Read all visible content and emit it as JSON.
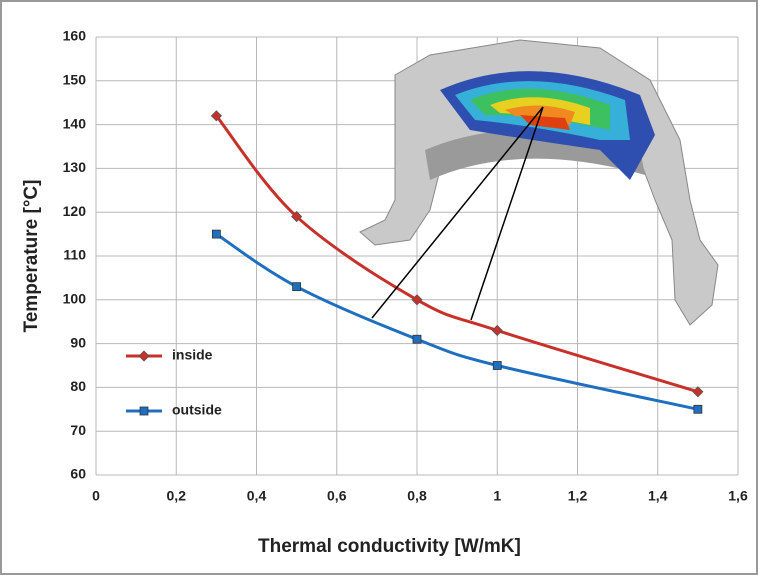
{
  "chart_data": {
    "type": "line",
    "x_label": "Thermal conductivity [W/mK]",
    "y_label": "Temperature  [°C]",
    "x": [
      0.3,
      0.5,
      0.8,
      1.0,
      1.5
    ],
    "series": [
      {
        "name": "inside",
        "color": "#c8302a",
        "marker": "diamond",
        "values": [
          142,
          119,
          100,
          93,
          79
        ]
      },
      {
        "name": "outside",
        "color": "#1f6fc0",
        "marker": "square",
        "values": [
          115,
          103,
          91,
          85,
          75
        ]
      }
    ],
    "xlim": [
      0,
      1.6
    ],
    "xticks": [
      0,
      {
        "value": 0.2,
        "label": "0,2"
      },
      {
        "value": 0.4,
        "label": "0,4"
      },
      {
        "value": 0.6,
        "label": "0,6"
      },
      {
        "value": 0.8,
        "label": "0,8"
      },
      1,
      {
        "value": 1.2,
        "label": "1,2"
      },
      {
        "value": 1.4,
        "label": "1,4"
      },
      {
        "value": 1.6,
        "label": "1,6"
      }
    ],
    "ylim": [
      60,
      160
    ],
    "yticks": [
      60,
      70,
      80,
      90,
      100,
      110,
      120,
      130,
      140,
      150,
      160
    ],
    "grid": true,
    "legend": "left"
  }
}
